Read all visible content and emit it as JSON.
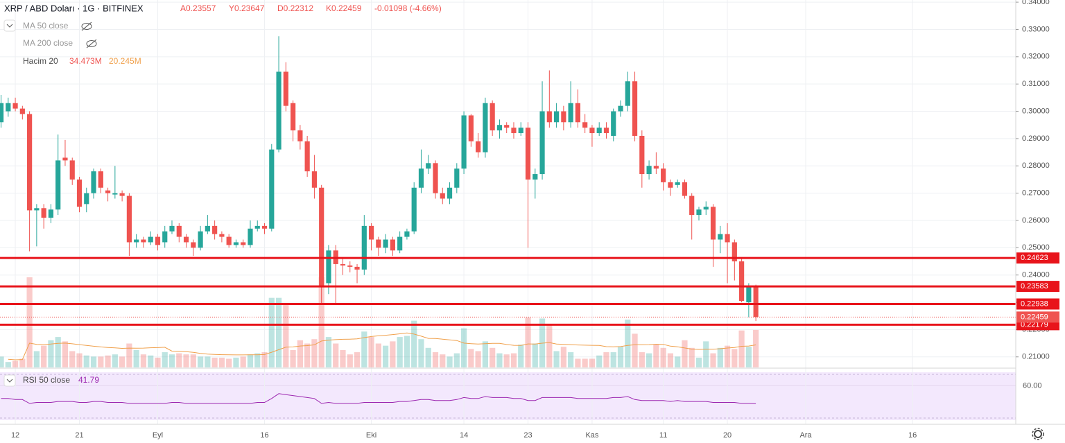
{
  "chart_data": {
    "type": "candlestick",
    "title": "XRP / ABD Doları · 1G · BITFINEX",
    "ohlc_labels": [
      "A0.23557",
      "Y0.23647",
      "D0.22312",
      "K0.22459"
    ],
    "change": "-0.01098 (-4.66%)",
    "indicators": {
      "ma50": "MA 50 close",
      "ma200": "MA 200 close",
      "volume": "Hacim 20",
      "volume_value": "34.473M",
      "volume_ma_value": "20.245M",
      "rsi": "RSI 50 close",
      "rsi_value": "41.79"
    },
    "up_color": "#26a69a",
    "down_color": "#ef5350",
    "level_color": "#e8141b",
    "rsi_color": "#9c27b0",
    "volume_ma_color": "#f0a04b",
    "categories": [
      null,
      null,
      "12",
      null,
      null,
      null,
      null,
      null,
      null,
      null,
      null,
      "21",
      null,
      null,
      null,
      null,
      null,
      null,
      null,
      null,
      null,
      null,
      "Eyl",
      null,
      null,
      null,
      null,
      null,
      null,
      null,
      null,
      null,
      null,
      null,
      null,
      null,
      null,
      "16",
      null,
      null,
      null,
      null,
      null,
      null,
      null,
      null,
      null,
      null,
      null,
      null,
      null,
      null,
      "Eki",
      null,
      null,
      null,
      null,
      null,
      null,
      null,
      null,
      null,
      null,
      null,
      null,
      "14",
      null,
      null,
      null,
      null,
      null,
      null,
      null,
      null,
      "23",
      null,
      null,
      null,
      null,
      null,
      null,
      null,
      null,
      "Kas",
      null,
      null,
      null,
      null,
      null,
      null,
      null,
      null,
      null,
      "11",
      null,
      null,
      null,
      null,
      null,
      null,
      null,
      null,
      "20",
      null,
      null,
      null,
      null,
      null,
      null,
      null,
      null,
      null,
      null,
      "Ara",
      null,
      null,
      null,
      null,
      null,
      null,
      null,
      null,
      null,
      null,
      null,
      null,
      null,
      null,
      "16",
      null,
      null,
      null,
      null,
      null,
      null,
      null,
      null,
      null,
      null,
      null,
      null,
      null,
      null
    ],
    "open": [
      0.296,
      0.3,
      0.303,
      0.301,
      0.299,
      0.2637,
      0.2645,
      0.261,
      0.264,
      0.283,
      0.282,
      0.275,
      0.266,
      0.27,
      0.278,
      0.271,
      0.2695,
      0.27,
      0.269,
      0.252,
      0.253,
      0.252,
      0.254,
      0.252,
      0.256,
      0.258,
      0.254,
      0.252,
      0.25,
      0.256,
      0.258,
      0.255,
      0.254,
      0.251,
      0.252,
      0.251,
      0.257,
      0.258,
      0.257,
      0.286,
      0.3145,
      0.303,
      0.293,
      0.289,
      0.278,
      0.272,
      0.237,
      0.249,
      0.244,
      0.2435,
      0.243,
      0.242,
      0.258,
      0.253,
      0.25,
      0.253,
      0.249,
      0.254,
      0.256,
      0.272,
      0.279,
      0.281,
      0.27,
      0.268,
      0.272,
      0.279,
      0.2985,
      0.289,
      0.285,
      0.303,
      0.293,
      0.295,
      0.294,
      0.292,
      0.294,
      0.275,
      0.277,
      0.3,
      0.296,
      0.3,
      0.296,
      0.303,
      0.296,
      0.294,
      0.292,
      0.294,
      0.291,
      0.3,
      0.302,
      0.311,
      0.291,
      0.277,
      0.28,
      0.279,
      0.274,
      0.273,
      0.274,
      0.269,
      0.262,
      0.264,
      0.265,
      0.253,
      0.255,
      0.252,
      0.245,
      0.23,
      0.23557,
      null,
      null,
      null,
      null,
      null,
      null,
      null,
      null,
      null,
      null,
      null,
      null,
      null,
      null,
      null,
      null,
      null,
      null,
      null,
      null,
      null,
      null,
      null,
      null,
      null,
      null,
      null,
      null,
      null,
      null,
      null,
      null,
      null,
      null,
      null,
      null
    ],
    "high": [
      0.306,
      0.305,
      0.305,
      0.302,
      0.3,
      0.266,
      0.266,
      0.266,
      0.2915,
      0.2895,
      0.283,
      0.276,
      0.272,
      0.279,
      0.279,
      0.272,
      0.28,
      0.271,
      0.27,
      0.255,
      0.254,
      0.256,
      0.255,
      0.258,
      0.26,
      0.259,
      0.255,
      0.253,
      0.258,
      0.262,
      0.26,
      0.256,
      0.255,
      0.253,
      0.253,
      0.26,
      0.26,
      0.259,
      0.288,
      0.3275,
      0.318,
      0.304,
      0.295,
      0.291,
      0.284,
      0.273,
      0.251,
      0.251,
      0.246,
      0.245,
      0.244,
      0.262,
      0.259,
      0.254,
      0.255,
      0.254,
      0.256,
      0.257,
      0.274,
      0.286,
      0.284,
      0.282,
      0.272,
      0.274,
      0.281,
      0.3,
      0.299,
      0.292,
      0.305,
      0.304,
      0.297,
      0.296,
      0.296,
      0.296,
      0.296,
      0.279,
      0.311,
      0.315,
      0.303,
      0.302,
      0.311,
      0.308,
      0.299,
      0.295,
      0.296,
      0.296,
      0.301,
      0.304,
      0.3145,
      0.3145,
      0.293,
      0.282,
      0.285,
      0.281,
      0.275,
      0.275,
      0.275,
      0.27,
      0.265,
      0.267,
      0.266,
      0.258,
      0.259,
      0.253,
      0.246,
      0.237,
      0.23647,
      null,
      null,
      null,
      null,
      null,
      null,
      null,
      null,
      null,
      null,
      null,
      null,
      null,
      null,
      null,
      null,
      null,
      null,
      null,
      null,
      null,
      null,
      null,
      null,
      null,
      null,
      null,
      null,
      null,
      null,
      null,
      null,
      null,
      null,
      null,
      null
    ],
    "low": [
      0.294,
      0.298,
      0.3,
      0.297,
      0.2487,
      0.2505,
      0.257,
      0.259,
      0.262,
      0.28,
      0.273,
      0.263,
      0.263,
      0.268,
      0.27,
      0.267,
      0.268,
      0.267,
      0.247,
      0.25,
      0.25,
      0.251,
      0.249,
      0.25,
      0.255,
      0.252,
      0.25,
      0.247,
      0.249,
      0.255,
      0.253,
      0.252,
      0.25,
      0.25,
      0.25,
      0.25,
      0.256,
      0.255,
      0.256,
      0.285,
      0.3,
      0.289,
      0.286,
      0.276,
      0.268,
      0.229,
      0.233,
      0.229,
      0.24,
      0.241,
      0.237,
      0.24,
      0.249,
      0.247,
      0.248,
      0.247,
      0.248,
      0.253,
      0.255,
      0.27,
      0.277,
      0.268,
      0.266,
      0.266,
      0.27,
      0.277,
      0.287,
      0.283,
      0.283,
      0.291,
      0.29,
      0.292,
      0.29,
      0.291,
      0.25,
      0.268,
      0.275,
      0.294,
      0.294,
      0.293,
      0.294,
      0.294,
      0.292,
      0.287,
      0.291,
      0.29,
      0.289,
      0.298,
      0.3,
      0.289,
      0.272,
      0.275,
      0.277,
      0.271,
      0.269,
      0.272,
      0.268,
      0.253,
      0.26,
      0.262,
      0.243,
      0.248,
      0.237,
      0.238,
      0.23,
      0.2245,
      0.22312,
      null,
      null,
      null,
      null,
      null,
      null,
      null,
      null,
      null,
      null,
      null,
      null,
      null,
      null,
      null,
      null,
      null,
      null,
      null,
      null,
      null,
      null,
      null,
      null,
      null,
      null,
      null,
      null,
      null,
      null,
      null,
      null,
      null,
      null,
      null,
      null
    ],
    "close": [
      0.303,
      0.303,
      0.301,
      0.299,
      0.2637,
      0.2645,
      0.261,
      0.264,
      0.282,
      0.282,
      0.275,
      0.265,
      0.27,
      0.278,
      0.272,
      0.27,
      0.27,
      0.269,
      0.252,
      0.253,
      0.252,
      0.254,
      0.251,
      0.256,
      0.258,
      0.254,
      0.252,
      0.25,
      0.256,
      0.258,
      0.255,
      0.254,
      0.251,
      0.252,
      0.251,
      0.257,
      0.258,
      0.257,
      0.286,
      0.3145,
      0.302,
      0.293,
      0.289,
      0.278,
      0.272,
      0.236,
      0.249,
      0.244,
      0.2435,
      0.243,
      0.242,
      0.258,
      0.253,
      0.25,
      0.253,
      0.249,
      0.254,
      0.256,
      0.272,
      0.279,
      0.281,
      0.27,
      0.268,
      0.272,
      0.279,
      0.2985,
      0.289,
      0.285,
      0.303,
      0.293,
      0.295,
      0.294,
      0.292,
      0.294,
      0.275,
      0.277,
      0.3,
      0.296,
      0.3,
      0.296,
      0.303,
      0.296,
      0.294,
      0.292,
      0.294,
      0.292,
      0.3,
      0.302,
      0.311,
      0.291,
      0.277,
      0.28,
      0.279,
      0.274,
      0.272,
      0.274,
      0.269,
      0.262,
      0.264,
      0.265,
      0.253,
      0.255,
      0.252,
      0.245,
      0.2305,
      0.2356,
      0.22459,
      null,
      null,
      null,
      null,
      null,
      null,
      null,
      null,
      null,
      null,
      null,
      null,
      null,
      null,
      null,
      null,
      null,
      null,
      null,
      null,
      null,
      null,
      null,
      null,
      null,
      null,
      null,
      null,
      null,
      null,
      null,
      null,
      null,
      null,
      null,
      null
    ],
    "volume": [
      10,
      5,
      6,
      8,
      83,
      15,
      20,
      25,
      28,
      24,
      15,
      13,
      11,
      10,
      10,
      11,
      12,
      10,
      22,
      16,
      12,
      11,
      9,
      14,
      12,
      13,
      12,
      12,
      10,
      10,
      9,
      9,
      8,
      9,
      10,
      12,
      13,
      14,
      64,
      64,
      58,
      16,
      25,
      22,
      26,
      83,
      28,
      22,
      16,
      12,
      14,
      33,
      28,
      22,
      20,
      24,
      28,
      29,
      43,
      26,
      18,
      14,
      12,
      10,
      13,
      36,
      17,
      15,
      24,
      18,
      13,
      12,
      13,
      21,
      46,
      22,
      45,
      40,
      15,
      19,
      14,
      8,
      8,
      8,
      11,
      14,
      14,
      19,
      44,
      31,
      14,
      13,
      21,
      18,
      13,
      10,
      25,
      18,
      9,
      24,
      13,
      18,
      20,
      17,
      34,
      19,
      34.473,
      null,
      null,
      null,
      null,
      null,
      null,
      null,
      null,
      null,
      null,
      null,
      null,
      null,
      null,
      null,
      null,
      null,
      null,
      null,
      null,
      null,
      null,
      null,
      null,
      null,
      null,
      null,
      null,
      null,
      null,
      null,
      null,
      null,
      null,
      null,
      null
    ],
    "rsi": [
      47,
      47,
      46,
      46,
      42,
      43,
      43,
      43,
      44,
      44,
      44,
      43,
      43,
      44,
      44,
      43,
      43,
      43,
      42,
      42,
      42,
      42,
      42,
      42,
      43,
      43,
      42,
      42,
      42,
      42,
      42,
      42,
      42,
      42,
      42,
      42,
      43,
      43,
      47,
      52,
      51,
      50,
      49,
      48,
      47,
      42,
      43,
      42,
      42,
      42,
      42,
      43,
      43,
      43,
      43,
      43,
      44,
      44,
      45,
      46,
      46,
      45,
      45,
      45,
      46,
      48,
      47,
      47,
      49,
      48,
      48,
      48,
      47,
      47,
      45,
      45,
      48,
      48,
      48,
      48,
      48,
      47,
      47,
      47,
      47,
      47,
      48,
      48,
      49,
      46,
      45,
      45,
      45,
      45,
      44,
      45,
      44,
      44,
      44,
      44,
      43,
      43,
      43,
      43,
      42,
      42,
      41.79,
      null,
      null,
      null,
      null,
      null,
      null,
      null,
      null,
      null,
      null,
      null,
      null,
      null,
      null,
      null,
      null,
      null,
      null,
      null,
      null,
      null,
      null,
      null,
      null,
      null,
      null,
      null,
      null,
      null,
      null,
      null,
      null,
      null,
      null,
      null,
      null
    ],
    "ylim": [
      0.20613,
      0.34079
    ],
    "yticks": [
      {
        "value": 0.21,
        "label": "0.21000"
      },
      {
        "value": 0.22,
        "label": "0.22000"
      },
      {
        "value": 0.23,
        "label": "0.23000"
      },
      {
        "value": 0.24,
        "label": "0.24000"
      },
      {
        "value": 0.25,
        "label": "0.25000"
      },
      {
        "value": 0.26,
        "label": "0.26000"
      },
      {
        "value": 0.27,
        "label": "0.27000"
      },
      {
        "value": 0.28,
        "label": "0.28000"
      },
      {
        "value": 0.29,
        "label": "0.29000"
      },
      {
        "value": 0.3,
        "label": "0.30000"
      },
      {
        "value": 0.31,
        "label": "0.31000"
      },
      {
        "value": 0.32,
        "label": "0.32000"
      },
      {
        "value": 0.33,
        "label": "0.33000"
      },
      {
        "value": 0.34,
        "label": "0.34000"
      }
    ],
    "levels": [
      0.24623,
      0.23583,
      0.22938,
      0.22179
    ],
    "last_price": 0.22459,
    "volume_ylim": [
      0,
      338
    ],
    "rsi_ylim": [
      25,
      73
    ],
    "rsi_yticks": [
      {
        "value": 60,
        "label": "60.00"
      }
    ],
    "grid": true
  }
}
